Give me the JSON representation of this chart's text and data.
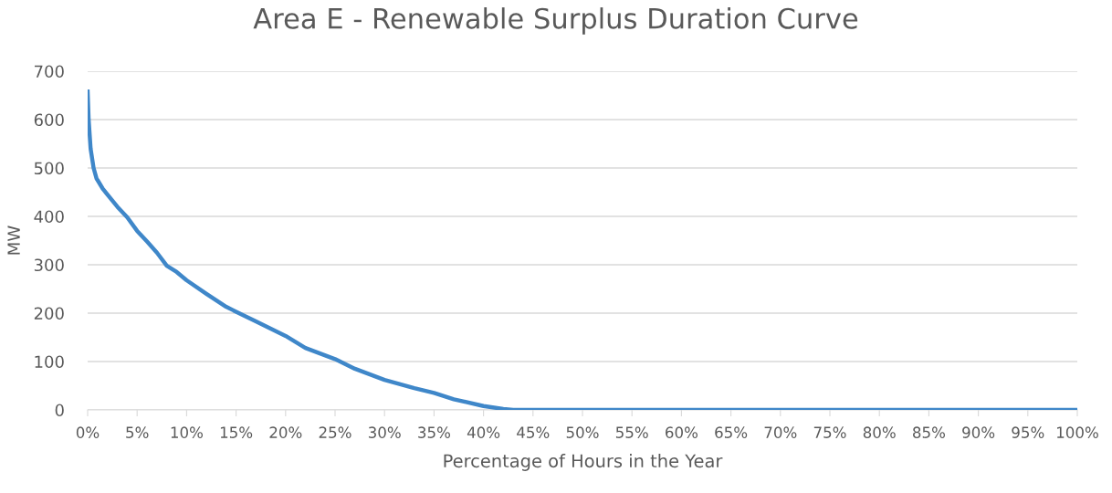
{
  "chart_data": {
    "type": "line",
    "title": "Area E - Renewable Surplus Duration Curve",
    "xlabel": "Percentage of Hours in the Year",
    "ylabel": "MW",
    "x": [
      0,
      0.1,
      0.3,
      0.6,
      0.9,
      1,
      1.5,
      2,
      3,
      4,
      5,
      6,
      7,
      8,
      9,
      10,
      12,
      14,
      15,
      17,
      20,
      22,
      25,
      27,
      30,
      33,
      35,
      37,
      40,
      42,
      43,
      100
    ],
    "series": [
      {
        "color": "#3f87c9",
        "values": [
          658,
          600,
          540,
          500,
          478,
          475,
          458,
          445,
          420,
          398,
          370,
          348,
          325,
          298,
          285,
          268,
          240,
          213,
          203,
          183,
          153,
          128,
          105,
          85,
          62,
          45,
          35,
          22,
          8,
          2,
          0,
          0
        ]
      }
    ],
    "xlim": [
      0,
      100
    ],
    "ylim": [
      0,
      700
    ],
    "xticks": [
      {
        "value": 0,
        "label": "0%"
      },
      {
        "value": 5,
        "label": "5%"
      },
      {
        "value": 10,
        "label": "10%"
      },
      {
        "value": 15,
        "label": "15%"
      },
      {
        "value": 20,
        "label": "20%"
      },
      {
        "value": 25,
        "label": "25%"
      },
      {
        "value": 30,
        "label": "30%"
      },
      {
        "value": 35,
        "label": "35%"
      },
      {
        "value": 40,
        "label": "40%"
      },
      {
        "value": 45,
        "label": "45%"
      },
      {
        "value": 50,
        "label": "50%"
      },
      {
        "value": 55,
        "label": "55%"
      },
      {
        "value": 60,
        "label": "60%"
      },
      {
        "value": 65,
        "label": "65%"
      },
      {
        "value": 70,
        "label": "70%"
      },
      {
        "value": 75,
        "label": "75%"
      },
      {
        "value": 80,
        "label": "80%"
      },
      {
        "value": 85,
        "label": "85%"
      },
      {
        "value": 90,
        "label": "90%"
      },
      {
        "value": 95,
        "label": "95%"
      },
      {
        "value": 100,
        "label": "100%"
      }
    ],
    "yticks": [
      0,
      100,
      200,
      300,
      400,
      500,
      600,
      700
    ],
    "grid": "y",
    "marker": "none",
    "line_style": "solid"
  }
}
